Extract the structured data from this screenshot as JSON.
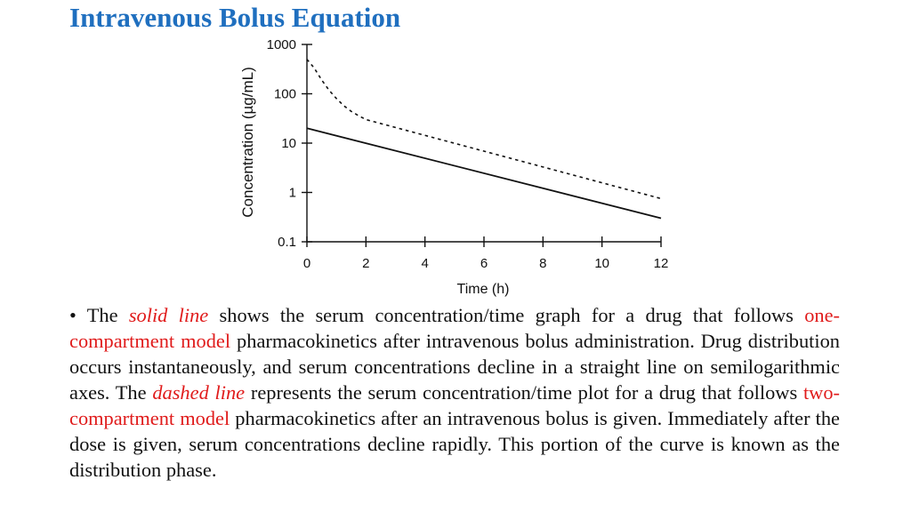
{
  "title": "Intravenous Bolus Equation",
  "chart_data": {
    "type": "line",
    "xlabel": "Time (h)",
    "ylabel": "Concentration (µg/mL)",
    "xlim": [
      0,
      12
    ],
    "ylim": [
      0.1,
      1000
    ],
    "yscale": "log",
    "grid": false,
    "x_ticks": [
      0,
      2,
      4,
      6,
      8,
      10,
      12
    ],
    "y_ticks": [
      0.1,
      1,
      10,
      100,
      1000
    ],
    "x_tick_labels": [
      "0",
      "2",
      "4",
      "6",
      "8",
      "10",
      "12"
    ],
    "y_tick_labels": [
      "0.1",
      "1",
      "10",
      "100",
      "1000"
    ],
    "series": [
      {
        "style": "solid",
        "x": [
          0,
          12
        ],
        "y": [
          20,
          0.3
        ]
      },
      {
        "style": "dashed",
        "x": [
          0,
          0.25,
          0.5,
          0.75,
          1.0,
          1.25,
          1.5,
          1.75,
          2,
          12
        ],
        "y": [
          500,
          330,
          190,
          118,
          80,
          57,
          44,
          36,
          30,
          0.75
        ]
      }
    ]
  },
  "paragraph": {
    "bullet": "• The ",
    "solid_line": "solid line",
    "t1": " shows the serum concentration/time graph for a drug that follows ",
    "one_compartment": "one-compartment model",
    "t2": " pharmacokinetics after intravenous bolus administration. Drug distribution occurs instantaneously, and serum concentrations decline in a straight line on semilogarithmic axes. The ",
    "dashed_line": "dashed line",
    "t3": " represents the serum concentration/time plot for a drug that follows ",
    "two_compartment": "two-compartment model",
    "t4": " pharmacokinetics after an intravenous bolus is given. Immediately after the dose is given, serum concentrations decline rapidly. This portion of the curve is known as the distribution phase."
  }
}
